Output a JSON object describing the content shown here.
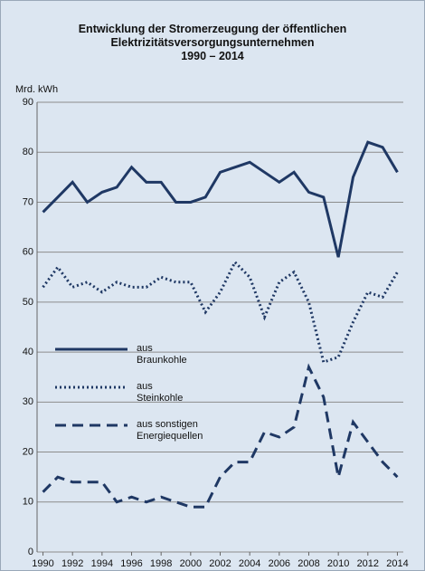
{
  "chart_data": {
    "type": "line",
    "title": "Entwicklung der Stromerzeugung der öffentlichen\nElektrizitätsversorgungsunternehmen\n1990 – 2014",
    "ylabel": "Mrd. kWh",
    "x": [
      1990,
      1991,
      1992,
      1993,
      1994,
      1995,
      1996,
      1997,
      1998,
      1999,
      2000,
      2001,
      2002,
      2003,
      2004,
      2005,
      2006,
      2007,
      2008,
      2009,
      2010,
      2011,
      2012,
      2013,
      2014
    ],
    "series": [
      {
        "name": "aus\nBraunkohle",
        "color": "#1f3864",
        "style": "solid",
        "values": [
          68,
          71,
          74,
          70,
          72,
          73,
          77,
          74,
          74,
          70,
          70,
          71,
          76,
          77,
          78,
          76,
          74,
          76,
          72,
          71,
          59,
          75,
          82,
          81,
          76
        ]
      },
      {
        "name": "aus\nSteinkohle",
        "color": "#1f3864",
        "style": "dotted",
        "values": [
          53,
          57,
          53,
          54,
          52,
          54,
          53,
          53,
          55,
          54,
          54,
          48,
          52,
          58,
          55,
          47,
          54,
          56,
          50,
          38,
          39,
          46,
          52,
          51,
          56
        ]
      },
      {
        "name": "aus sonstigen\nEnergiequellen",
        "color": "#1f3864",
        "style": "dashed",
        "values": [
          12,
          15,
          14,
          14,
          14,
          10,
          11,
          10,
          11,
          10,
          9,
          9,
          15,
          18,
          18,
          24,
          23,
          25,
          37,
          31,
          15,
          26,
          22,
          18,
          15
        ]
      }
    ],
    "xlim": [
      1989.6,
      2014.4
    ],
    "xticks": [
      1990,
      1992,
      1994,
      1996,
      1998,
      2000,
      2002,
      2004,
      2006,
      2008,
      2010,
      2012,
      2014
    ],
    "ylim": [
      0,
      90
    ],
    "yticks": [
      0,
      10,
      20,
      30,
      40,
      50,
      60,
      70,
      80,
      90
    ],
    "grid": true
  }
}
